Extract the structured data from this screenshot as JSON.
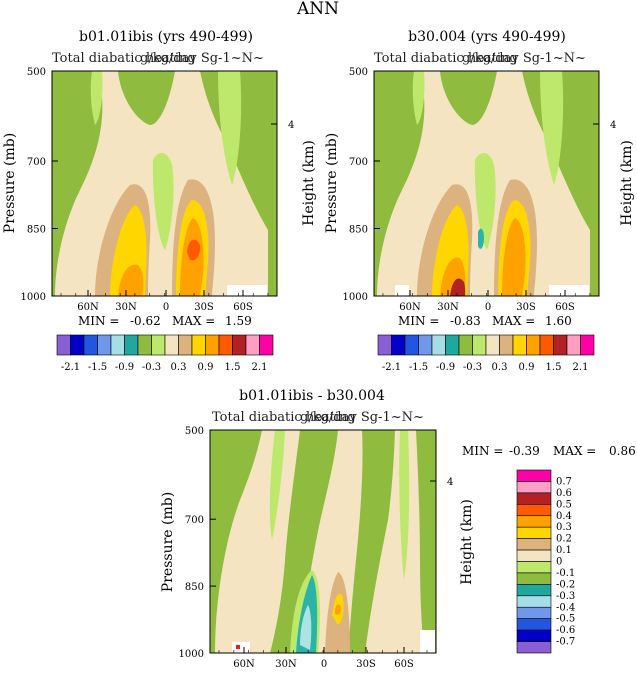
{
  "page_title": "ANN",
  "colors": {
    "panel_bg": "#8fbc3f",
    "cream": "#f4e4c1",
    "tan": "#dcb37f",
    "light_green": "#bde86b",
    "yellow": "#ffd600",
    "orange": "#ffa200",
    "red_orange": "#ff5a00",
    "teal": "#2ab3a6",
    "light_teal": "#aee3e6"
  },
  "chart_data": [
    {
      "type": "heatmap",
      "id": "panel1",
      "title": "b01.01ibis (yrs 490-499)",
      "subtitle_left": "Total diabatic heating",
      "subtitle_right": "g/kg/day Sg-1~N~",
      "ylabel": "Pressure (mb)",
      "ylabel_right": "Height (km)",
      "x_ticks": [
        "60N",
        "30N",
        "0",
        "30S",
        "60S"
      ],
      "y_ticks": [
        "500",
        "700",
        "850",
        "1000"
      ],
      "right_ticks": [
        "4"
      ],
      "ylim": [
        1000,
        500
      ],
      "min_label": "MIN = ",
      "min_value": "-0.62",
      "max_label": "MAX = ",
      "max_value": "1.59",
      "colorbar_levels": [
        -2.1,
        -1.8,
        -1.5,
        -1.2,
        -0.9,
        -0.6,
        -0.3,
        0,
        0.3,
        0.6,
        0.9,
        1.2,
        1.5,
        1.8,
        2.1
      ],
      "colorbar_labels": [
        "-2.1",
        "-1.5",
        "-0.9",
        "-0.3",
        "0.3",
        "0.9",
        "1.5",
        "2.1"
      ]
    },
    {
      "type": "heatmap",
      "id": "panel2",
      "title": "b30.004 (yrs 490-499)",
      "subtitle_left": "Total diabatic heating",
      "subtitle_right": "g/kg/day Sg-1~N~",
      "ylabel": "Pressure (mb)",
      "ylabel_right": "Height (km)",
      "x_ticks": [
        "60N",
        "30N",
        "0",
        "30S",
        "60S"
      ],
      "y_ticks": [
        "500",
        "700",
        "850",
        "1000"
      ],
      "right_ticks": [
        "4"
      ],
      "ylim": [
        1000,
        500
      ],
      "min_label": "MIN = ",
      "min_value": "-0.83",
      "max_label": "MAX = ",
      "max_value": "1.60",
      "colorbar_levels": [
        -2.1,
        -1.8,
        -1.5,
        -1.2,
        -0.9,
        -0.6,
        -0.3,
        0,
        0.3,
        0.6,
        0.9,
        1.2,
        1.5,
        1.8,
        2.1
      ],
      "colorbar_labels": [
        "-2.1",
        "-1.5",
        "-0.9",
        "-0.3",
        "0.3",
        "0.9",
        "1.5",
        "2.1"
      ]
    },
    {
      "type": "heatmap",
      "id": "panel3",
      "title": "b01.01ibis - b30.004",
      "subtitle_left": "Total diabatic heating",
      "subtitle_right": "g/kg/day Sg-1~N~",
      "ylabel": "Pressure (mb)",
      "ylabel_right": "Height (km)",
      "x_ticks": [
        "60N",
        "30N",
        "0",
        "30S",
        "60S"
      ],
      "y_ticks": [
        "500",
        "700",
        "850",
        "1000"
      ],
      "right_ticks": [
        "4"
      ],
      "ylim": [
        1000,
        500
      ],
      "min_label": "MIN = ",
      "min_value": "-0.39",
      "max_label": "MAX = ",
      "max_value": "0.86",
      "colorbar_levels": [
        0.7,
        0.6,
        0.5,
        0.4,
        0.3,
        0.2,
        0.1,
        0,
        -0.1,
        -0.2,
        -0.3,
        -0.4,
        -0.5,
        -0.6,
        -0.7
      ],
      "colorbar_labels": [
        "0.7",
        "0.6",
        "0.5",
        "0.4",
        "0.3",
        "0.2",
        "0.1",
        "0",
        "-0.1",
        "-0.2",
        "-0.3",
        "-0.4",
        "-0.5",
        "-0.6",
        "-0.7"
      ]
    }
  ]
}
